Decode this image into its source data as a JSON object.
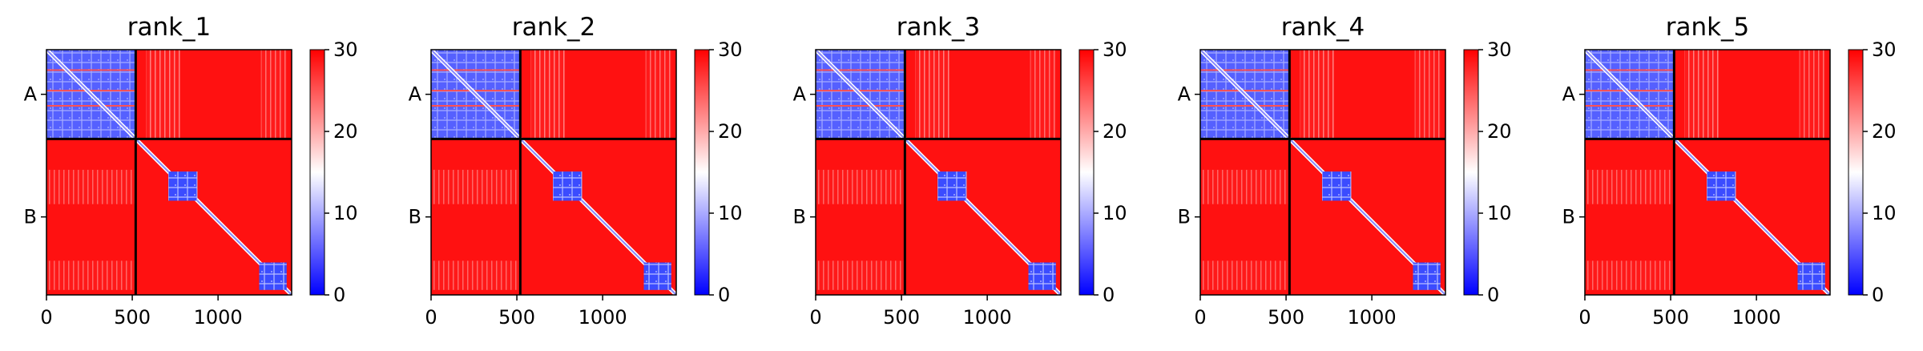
{
  "figure": {
    "color_scale": {
      "min": 0,
      "max": 30,
      "low_color": "#0000ff",
      "mid_color": "#ffffff",
      "high_color": "#ff0000"
    }
  },
  "chart_data": [
    {
      "type": "heatmap",
      "title": "rank_1",
      "xlabel": "",
      "ylabel": "",
      "x_ticks": [
        "0",
        "500",
        "1000"
      ],
      "x_tick_values": [
        0,
        500,
        1000
      ],
      "y_tick_labels": [
        "A",
        "B"
      ],
      "xlim": [
        0,
        1429
      ],
      "ylim": [
        0,
        1429
      ],
      "chain_boundaries": [
        0,
        520,
        1429
      ],
      "colorbar": {
        "min": 0,
        "max": 30,
        "ticks": [
          "0",
          "10",
          "20",
          "30"
        ]
      },
      "blocks": {
        "A-A": 8,
        "A-B": 29,
        "B-B": 29,
        "B-B domain 1": 8,
        "B-B domain 2": 8
      }
    },
    {
      "type": "heatmap",
      "title": "rank_2",
      "xlabel": "",
      "ylabel": "",
      "x_ticks": [
        "0",
        "500",
        "1000"
      ],
      "x_tick_values": [
        0,
        500,
        1000
      ],
      "y_tick_labels": [
        "A",
        "B"
      ],
      "xlim": [
        0,
        1429
      ],
      "ylim": [
        0,
        1429
      ],
      "chain_boundaries": [
        0,
        520,
        1429
      ],
      "colorbar": {
        "min": 0,
        "max": 30,
        "ticks": [
          "0",
          "10",
          "20",
          "30"
        ]
      },
      "blocks": {
        "A-A": 8,
        "A-B": 29,
        "B-B": 29,
        "B-B domain 1": 8,
        "B-B domain 2": 8
      }
    },
    {
      "type": "heatmap",
      "title": "rank_3",
      "xlabel": "",
      "ylabel": "",
      "x_ticks": [
        "0",
        "500",
        "1000"
      ],
      "x_tick_values": [
        0,
        500,
        1000
      ],
      "y_tick_labels": [
        "A",
        "B"
      ],
      "xlim": [
        0,
        1429
      ],
      "ylim": [
        0,
        1429
      ],
      "chain_boundaries": [
        0,
        520,
        1429
      ],
      "colorbar": {
        "min": 0,
        "max": 30,
        "ticks": [
          "0",
          "10",
          "20",
          "30"
        ]
      },
      "blocks": {
        "A-A": 8,
        "A-B": 29,
        "B-B": 29,
        "B-B domain 1": 8,
        "B-B domain 2": 8
      }
    },
    {
      "type": "heatmap",
      "title": "rank_4",
      "xlabel": "",
      "ylabel": "",
      "x_ticks": [
        "0",
        "500",
        "1000"
      ],
      "x_tick_values": [
        0,
        500,
        1000
      ],
      "y_tick_labels": [
        "A",
        "B"
      ],
      "xlim": [
        0,
        1429
      ],
      "ylim": [
        0,
        1429
      ],
      "chain_boundaries": [
        0,
        520,
        1429
      ],
      "colorbar": {
        "min": 0,
        "max": 30,
        "ticks": [
          "0",
          "10",
          "20",
          "30"
        ]
      },
      "blocks": {
        "A-A": 8,
        "A-B": 29,
        "B-B": 29,
        "B-B domain 1": 8,
        "B-B domain 2": 8
      }
    },
    {
      "type": "heatmap",
      "title": "rank_5",
      "xlabel": "",
      "ylabel": "",
      "x_ticks": [
        "0",
        "500",
        "1000"
      ],
      "x_tick_values": [
        0,
        500,
        1000
      ],
      "y_tick_labels": [
        "A",
        "B"
      ],
      "xlim": [
        0,
        1429
      ],
      "ylim": [
        0,
        1429
      ],
      "chain_boundaries": [
        0,
        520,
        1429
      ],
      "colorbar": {
        "min": 0,
        "max": 30,
        "ticks": [
          "0",
          "10",
          "20",
          "30"
        ]
      },
      "blocks": {
        "A-A": 8,
        "A-B": 29,
        "B-B": 29,
        "B-B domain 1": 8,
        "B-B domain 2": 8
      }
    }
  ]
}
